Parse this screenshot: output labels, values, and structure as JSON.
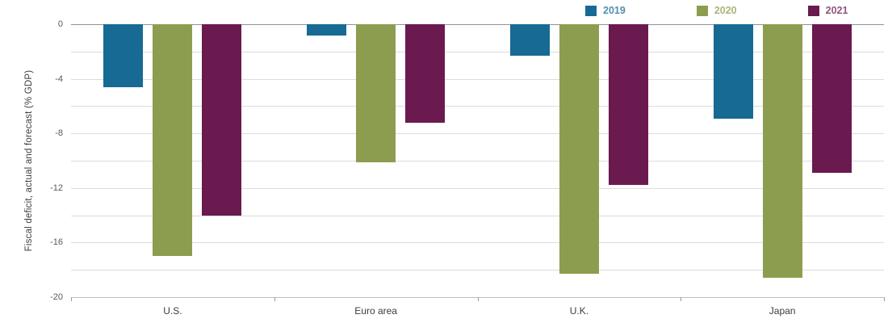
{
  "chart_data": {
    "type": "bar",
    "title": "",
    "xlabel": "",
    "ylabel": "Fiscal deficit, actual and forecast (% GDP)",
    "ylim": [
      -20,
      0
    ],
    "yticks_labeled": [
      0,
      -4,
      -8,
      -12,
      -16,
      -20
    ],
    "gridline_step": 2,
    "grid": true,
    "legend_position": "top-right",
    "categories": [
      "U.S.",
      "Euro area",
      "U.K.",
      "Japan"
    ],
    "series": [
      {
        "name": "2019",
        "color": "#176a93",
        "values": [
          -4.6,
          -0.8,
          -2.3,
          -6.9
        ]
      },
      {
        "name": "2020",
        "color": "#8c9d50",
        "values": [
          -17.0,
          -10.1,
          -18.3,
          -18.6
        ]
      },
      {
        "name": "2021",
        "color": "#6a1a4f",
        "values": [
          -14.0,
          -7.2,
          -11.8,
          -10.9
        ]
      }
    ]
  },
  "colors": {
    "zero_line": "#8a939b",
    "gridline": "#dcdcdc",
    "axis_line": "#bfbfbf",
    "tick_text": "#55585c",
    "category_text": "#3c3c3c"
  }
}
